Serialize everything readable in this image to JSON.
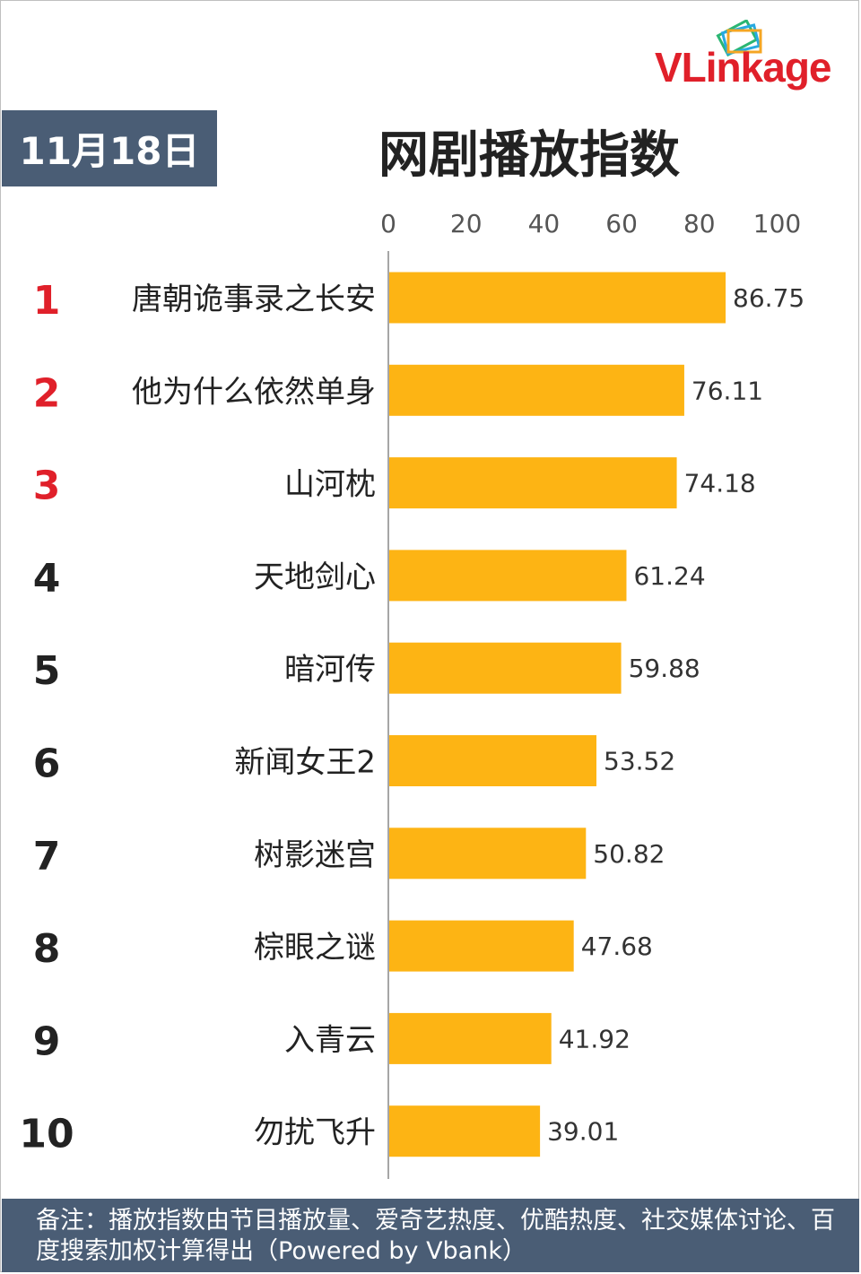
{
  "brand": {
    "logo_text_a": "VLink",
    "logo_text_b": "age",
    "logo_colors": [
      "#2bb673",
      "#27a9e1",
      "#f5a623",
      "#e0202a"
    ]
  },
  "header": {
    "date": "11月18日",
    "title": "网剧播放指数"
  },
  "chart_data": {
    "type": "bar",
    "orientation": "horizontal",
    "title": "网剧播放指数",
    "xlim": [
      0,
      100
    ],
    "x_ticks": [
      0,
      20,
      40,
      60,
      80,
      100
    ],
    "ranks": [
      "1",
      "2",
      "3",
      "4",
      "5",
      "6",
      "7",
      "8",
      "9",
      "10"
    ],
    "categories": [
      "唐朝诡事录之长安",
      "他为什么依然单身",
      "山河枕",
      "天地剑心",
      "暗河传",
      "新闻女王2",
      "树影迷宫",
      "棕眼之谜",
      "入青云",
      "勿扰飞升"
    ],
    "values": [
      86.75,
      76.11,
      74.18,
      61.24,
      59.88,
      53.52,
      50.82,
      47.68,
      41.92,
      39.01
    ],
    "value_labels": [
      "86.75",
      "76.11",
      "74.18",
      "61.24",
      "59.88",
      "53.52",
      "50.82",
      "47.68",
      "41.92",
      "39.01"
    ],
    "bar_color": "#fdb414",
    "top_rank_color": "#e0202a",
    "rank_color": "#222222",
    "grid": false
  },
  "footer": {
    "note": "备注：播放指数由节目播放量、爱奇艺热度、优酷热度、社交媒体讨论、百度搜索加权计算得出（Powered by Vbank）"
  }
}
